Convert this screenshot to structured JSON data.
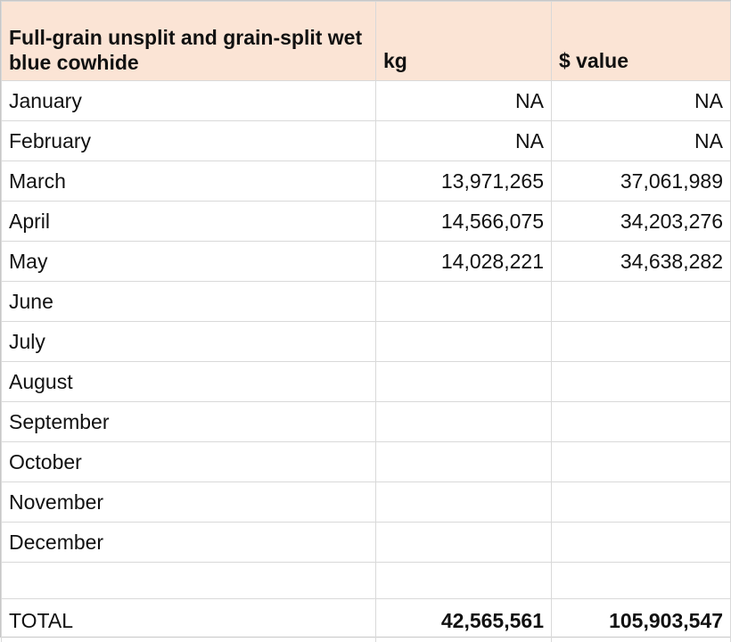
{
  "table": {
    "headers": [
      "Full-grain unsplit and grain-split wet blue cowhide",
      "kg",
      "$ value"
    ],
    "rows": [
      {
        "month": "January",
        "kg": "NA",
        "value": "NA"
      },
      {
        "month": "February",
        "kg": "NA",
        "value": "NA"
      },
      {
        "month": "March",
        "kg": "13,971,265",
        "value": "37,061,989"
      },
      {
        "month": "April",
        "kg": "14,566,075",
        "value": "34,203,276"
      },
      {
        "month": "May",
        "kg": "14,028,221",
        "value": "34,638,282"
      },
      {
        "month": "June",
        "kg": "",
        "value": ""
      },
      {
        "month": "July",
        "kg": "",
        "value": ""
      },
      {
        "month": "August",
        "kg": "",
        "value": ""
      },
      {
        "month": "September",
        "kg": "",
        "value": ""
      },
      {
        "month": "October",
        "kg": "",
        "value": ""
      },
      {
        "month": "November",
        "kg": "",
        "value": ""
      },
      {
        "month": "December",
        "kg": "",
        "value": ""
      }
    ],
    "total": {
      "label": "TOTAL",
      "kg": "42,565,561",
      "value": "105,903,547"
    }
  },
  "colors": {
    "header_bg": "#fbe4d5",
    "grid": "#d9d9d9"
  }
}
